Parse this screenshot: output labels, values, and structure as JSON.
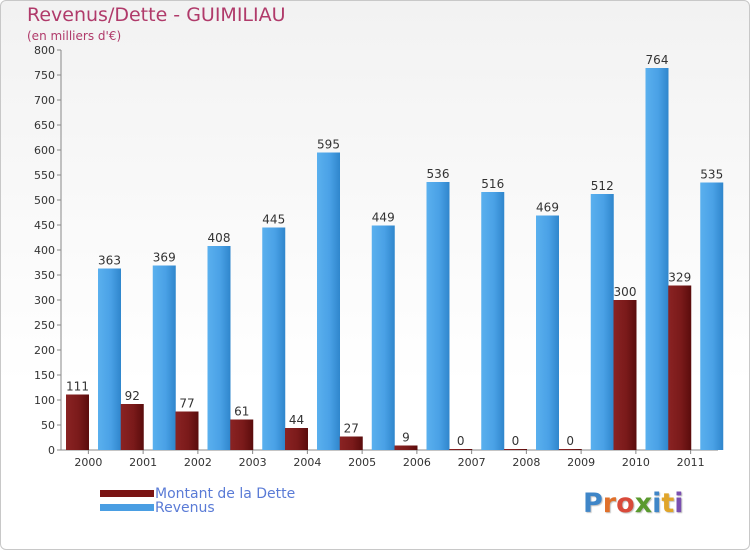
{
  "page": {
    "title": "Revenus/Dette - GUIMILIAU",
    "subtitle": "(en milliers d'€)"
  },
  "legend": {
    "items": [
      {
        "label": "Montant de la Dette",
        "color": "#7a1414"
      },
      {
        "label": "Revenus",
        "color": "#4a9ee3"
      }
    ]
  },
  "logo": {
    "text": "Proxiti",
    "letters": [
      {
        "ch": "P",
        "color": "#3f86c8"
      },
      {
        "ch": "r",
        "color": "#e0702a"
      },
      {
        "ch": "o",
        "color": "#d94a3a"
      },
      {
        "ch": "x",
        "color": "#5a9a2e"
      },
      {
        "ch": "i",
        "color": "#3f86c8"
      },
      {
        "ch": "t",
        "color": "#e0a52a"
      },
      {
        "ch": "i",
        "color": "#7a4fb0"
      }
    ]
  },
  "chart_data": {
    "type": "bar",
    "title": "Revenus/Dette - GUIMILIAU",
    "subtitle": "(en milliers d'€)",
    "categories": [
      "2000",
      "2001",
      "2002",
      "2003",
      "2004",
      "2005",
      "2006",
      "2007",
      "2008",
      "2009",
      "2010",
      "2011"
    ],
    "series": [
      {
        "name": "Montant de la Dette",
        "color": "#7a1414",
        "values": [
          111,
          92,
          77,
          61,
          44,
          27,
          9,
          0,
          0,
          0,
          300,
          329
        ]
      },
      {
        "name": "Revenus",
        "color": "#4a9ee3",
        "values": [
          363,
          369,
          408,
          445,
          595,
          449,
          536,
          516,
          469,
          512,
          764,
          535
        ]
      }
    ],
    "ylim": [
      0,
      800
    ],
    "yticks": [
      0,
      50,
      100,
      150,
      200,
      250,
      300,
      350,
      400,
      450,
      500,
      550,
      600,
      650,
      700,
      750,
      800
    ],
    "grid": false,
    "legend_position": "bottom-left"
  }
}
